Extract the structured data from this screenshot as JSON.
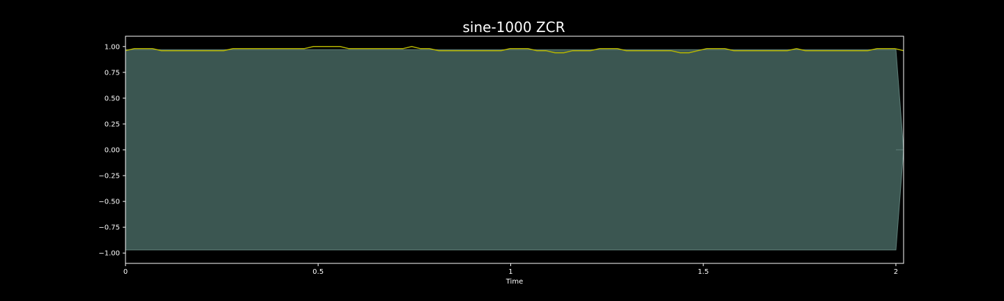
{
  "chart_data": {
    "type": "area",
    "title": "sine-1000 ZCR",
    "xlabel": "Time",
    "ylabel": "",
    "xlim": [
      0,
      2.02
    ],
    "ylim": [
      -1.1,
      1.1
    ],
    "x_ticks": [
      0,
      0.5,
      1,
      1.5,
      2
    ],
    "x_tick_labels": [
      "0",
      "0.5",
      "1",
      "1.5",
      "2"
    ],
    "y_ticks": [
      1.0,
      0.75,
      0.5,
      0.25,
      0.0,
      -0.25,
      -0.5,
      -0.75,
      -1.0
    ],
    "y_tick_labels": [
      "1.00",
      "0.75",
      "0.50",
      "0.25",
      "0.00",
      "−0.25",
      "−0.50",
      "−0.75",
      "−1.00"
    ],
    "grid": false,
    "colors": {
      "background": "#000000",
      "frame": "#ffffff",
      "waveform_fill": "#3b5651",
      "waveform_edge": "#5f7f79",
      "zcr_line": "#b5b500"
    },
    "series": [
      {
        "kind": "waveform-envelope",
        "x": [
          0,
          2.0,
          2.02
        ],
        "upper": [
          0.97,
          0.97,
          0.0
        ],
        "lower": [
          -0.97,
          -0.97,
          0.0
        ]
      },
      {
        "kind": "zcr",
        "x": [
          0,
          0.023,
          0.046,
          0.07,
          0.093,
          0.116,
          0.139,
          0.163,
          0.186,
          0.209,
          0.232,
          0.255,
          0.279,
          0.302,
          0.325,
          0.348,
          0.372,
          0.395,
          0.418,
          0.441,
          0.464,
          0.488,
          0.511,
          0.534,
          0.557,
          0.58,
          0.604,
          0.627,
          0.65,
          0.673,
          0.697,
          0.72,
          0.743,
          0.766,
          0.789,
          0.813,
          0.836,
          0.859,
          0.882,
          0.906,
          0.929,
          0.952,
          0.975,
          0.998,
          1.022,
          1.045,
          1.068,
          1.091,
          1.115,
          1.138,
          1.161,
          1.184,
          1.207,
          1.231,
          1.254,
          1.277,
          1.3,
          1.323,
          1.347,
          1.37,
          1.393,
          1.416,
          1.44,
          1.463,
          1.486,
          1.509,
          1.533,
          1.556,
          1.579,
          1.602,
          1.625,
          1.649,
          1.672,
          1.695,
          1.718,
          1.742,
          1.765,
          1.788,
          1.811,
          1.834,
          1.858,
          1.881,
          1.904,
          1.927,
          1.951,
          1.974,
          1.997,
          2.02
        ],
        "values": [
          0.96,
          0.98,
          0.98,
          0.98,
          0.96,
          0.96,
          0.96,
          0.96,
          0.96,
          0.96,
          0.96,
          0.96,
          0.98,
          0.98,
          0.98,
          0.98,
          0.98,
          0.98,
          0.98,
          0.98,
          0.98,
          1.0,
          1.0,
          1.0,
          1.0,
          0.98,
          0.98,
          0.98,
          0.98,
          0.98,
          0.98,
          0.98,
          1.0,
          0.98,
          0.98,
          0.96,
          0.96,
          0.96,
          0.96,
          0.96,
          0.96,
          0.96,
          0.96,
          0.98,
          0.98,
          0.98,
          0.96,
          0.96,
          0.94,
          0.94,
          0.96,
          0.96,
          0.96,
          0.98,
          0.98,
          0.98,
          0.96,
          0.96,
          0.96,
          0.96,
          0.96,
          0.96,
          0.94,
          0.94,
          0.96,
          0.98,
          0.98,
          0.98,
          0.96,
          0.96,
          0.96,
          0.96,
          0.96,
          0.96,
          0.96,
          0.98,
          0.96,
          0.96,
          0.96,
          0.96,
          0.96,
          0.96,
          0.96,
          0.96,
          0.98,
          0.98,
          0.98,
          0.96
        ]
      }
    ]
  }
}
